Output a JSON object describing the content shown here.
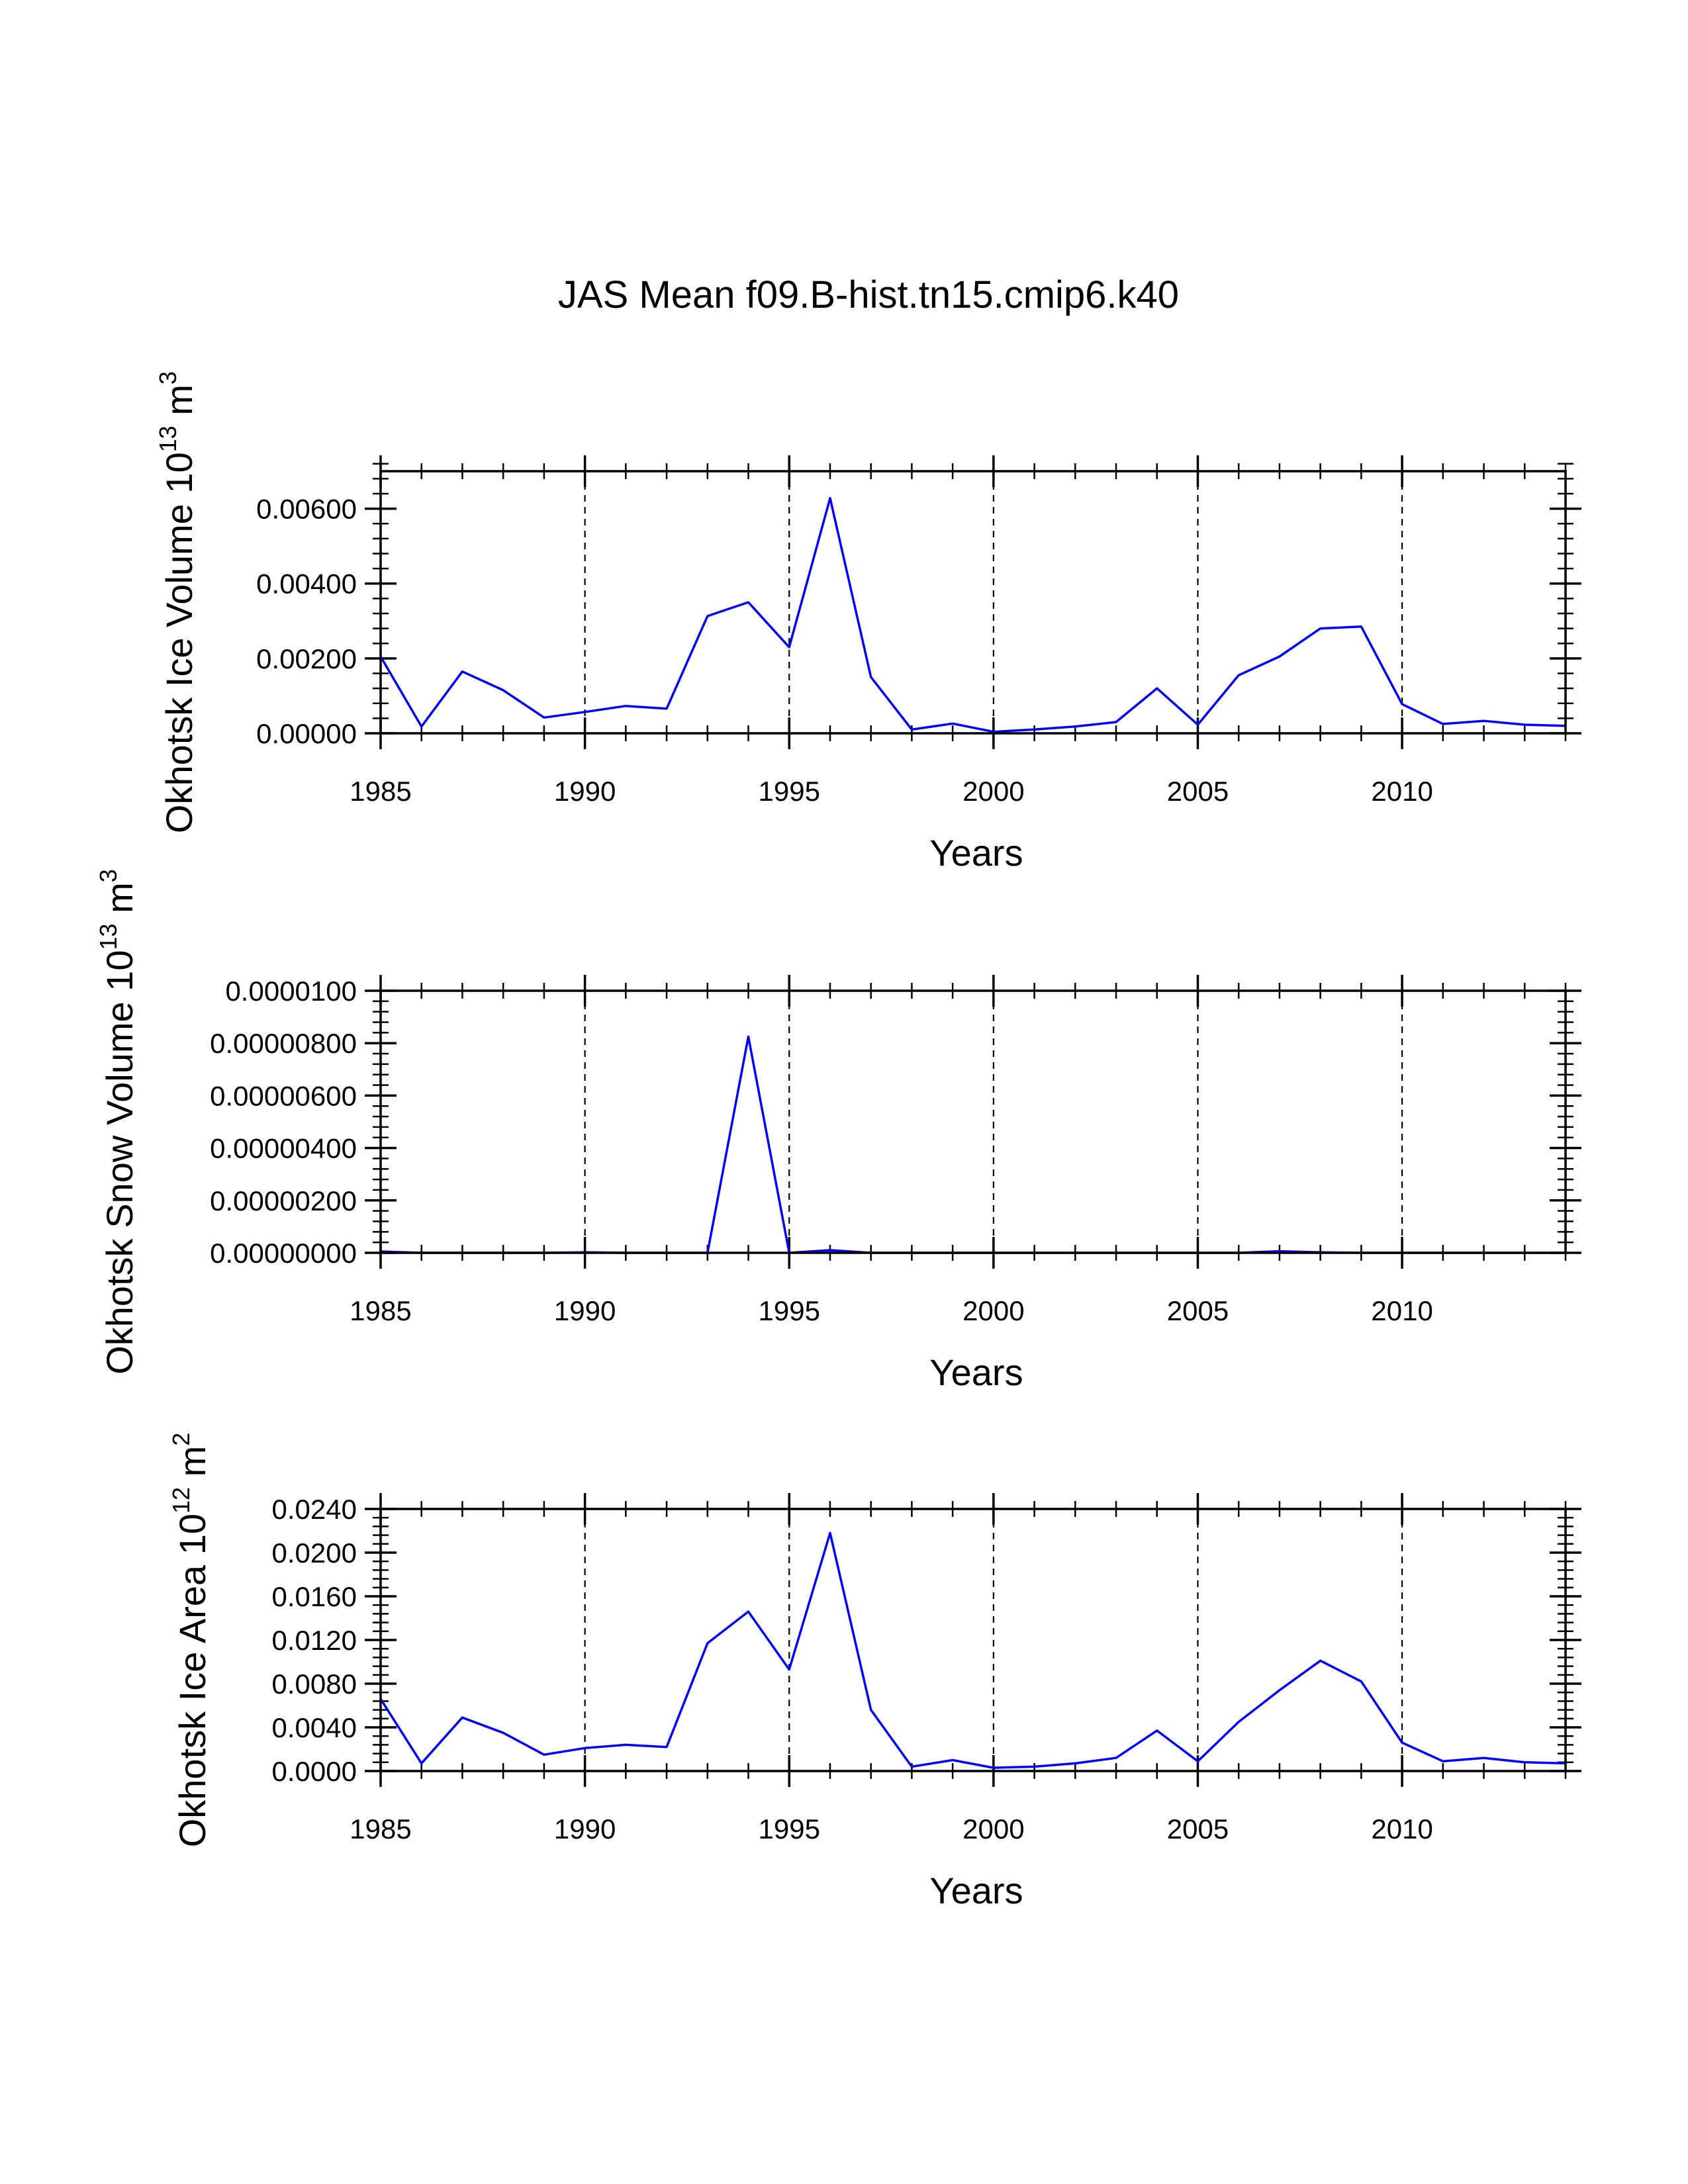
{
  "figure": {
    "title": "JAS Mean f09.B-hist.tn15.cmip6.k40",
    "line_color": "#0000ff"
  },
  "chart_data": [
    {
      "type": "line",
      "name": "ice-volume",
      "ylabel": "Okhotsk Ice Volume 10",
      "ylabel_exp": "13",
      "ylabel_unit": " m",
      "ylabel_unit_exp": "3",
      "xlabel": "Years",
      "xlim": [
        1985,
        2014
      ],
      "ylim": [
        0,
        0.007
      ],
      "yticks": [
        0.0,
        0.002,
        0.004,
        0.006
      ],
      "ytick_labels": [
        "0.00000",
        "0.00200",
        "0.00400",
        "0.00600"
      ],
      "yminor_step": 0.0004,
      "xticks": [
        1985,
        1990,
        1995,
        2000,
        2005,
        2010
      ],
      "xtick_labels": [
        "1985",
        "1990",
        "1995",
        "2000",
        "2005",
        "2010"
      ],
      "grid_x": [
        1990,
        1995,
        2000,
        2005,
        2010
      ],
      "x": [
        1985,
        1986,
        1987,
        1988,
        1989,
        1990,
        1991,
        1992,
        1993,
        1994,
        1995,
        1996,
        1997,
        1998,
        1999,
        2000,
        2001,
        2002,
        2003,
        2004,
        2005,
        2006,
        2007,
        2008,
        2009,
        2010,
        2011,
        2012,
        2013,
        2014
      ],
      "y": [
        0.00205,
        0.00018,
        0.00165,
        0.00115,
        0.00042,
        0.00057,
        0.00073,
        0.00066,
        0.00313,
        0.0035,
        0.0023,
        0.00628,
        0.0015,
        0.0001,
        0.00026,
        4e-05,
        0.0001,
        0.00018,
        0.0003,
        0.0012,
        0.00023,
        0.00155,
        0.00205,
        0.0028,
        0.00285,
        0.00078,
        0.00025,
        0.00033,
        0.00023,
        0.0002
      ]
    },
    {
      "type": "line",
      "name": "snow-volume",
      "ylabel": "Okhotsk Snow Volume 10",
      "ylabel_exp": "13",
      "ylabel_unit": " m",
      "ylabel_unit_exp": "3",
      "xlabel": "Years",
      "xlim": [
        1985,
        2014
      ],
      "ylim": [
        0,
        1e-05
      ],
      "yticks": [
        0.0,
        2e-06,
        4e-06,
        6e-06,
        8e-06,
        1e-05
      ],
      "ytick_labels": [
        "0.00000000",
        "0.00000200",
        "0.00000400",
        "0.00000600",
        "0.00000800",
        "0.0000100"
      ],
      "yminor_step": 4e-07,
      "xticks": [
        1985,
        1990,
        1995,
        2000,
        2005,
        2010
      ],
      "xtick_labels": [
        "1985",
        "1990",
        "1995",
        "2000",
        "2005",
        "2010"
      ],
      "grid_x": [
        1990,
        1995,
        2000,
        2005,
        2010
      ],
      "x": [
        1985,
        1986,
        1987,
        1988,
        1989,
        1990,
        1991,
        1992,
        1993,
        1994,
        1995,
        1996,
        1997,
        1998,
        1999,
        2000,
        2001,
        2002,
        2003,
        2004,
        2005,
        2006,
        2007,
        2008,
        2009,
        2010,
        2011,
        2012,
        2013,
        2014
      ],
      "y": [
        5e-08,
        0.0,
        0.0,
        0.0,
        0.0,
        2e-08,
        0.0,
        0.0,
        0.0,
        8.25e-06,
        0.0,
        1e-07,
        0.0,
        0.0,
        0.0,
        0.0,
        0.0,
        0.0,
        0.0,
        0.0,
        0.0,
        0.0,
        6e-08,
        2e-08,
        0.0,
        0.0,
        0.0,
        0.0,
        0.0,
        0.0
      ]
    },
    {
      "type": "line",
      "name": "ice-area",
      "ylabel": "Okhotsk Ice Area 10",
      "ylabel_exp": "12",
      "ylabel_unit": " m",
      "ylabel_unit_exp": "2",
      "xlabel": "Years",
      "xlim": [
        1985,
        2014
      ],
      "ylim": [
        0,
        0.024
      ],
      "yticks": [
        0.0,
        0.004,
        0.008,
        0.012,
        0.016,
        0.02,
        0.024
      ],
      "ytick_labels": [
        "0.0000",
        "0.0040",
        "0.0080",
        "0.0120",
        "0.0160",
        "0.0200",
        "0.0240"
      ],
      "yminor_step": 0.0008,
      "xticks": [
        1985,
        1990,
        1995,
        2000,
        2005,
        2010
      ],
      "xtick_labels": [
        "1985",
        "1990",
        "1995",
        "2000",
        "2005",
        "2010"
      ],
      "grid_x": [
        1990,
        1995,
        2000,
        2005,
        2010
      ],
      "x": [
        1985,
        1986,
        1987,
        1988,
        1989,
        1990,
        1991,
        1992,
        1993,
        1994,
        1995,
        1996,
        1997,
        1998,
        1999,
        2000,
        2001,
        2002,
        2003,
        2004,
        2005,
        2006,
        2007,
        2008,
        2009,
        2010,
        2011,
        2012,
        2013,
        2014
      ],
      "y": [
        0.0066,
        0.0007,
        0.0049,
        0.0035,
        0.0015,
        0.0021,
        0.0024,
        0.0022,
        0.0117,
        0.0146,
        0.0093,
        0.0218,
        0.0056,
        0.0004,
        0.001,
        0.0003,
        0.0004,
        0.0007,
        0.0012,
        0.0037,
        0.0009,
        0.0045,
        0.0074,
        0.0101,
        0.0082,
        0.0026,
        0.0009,
        0.0012,
        0.0008,
        0.0007
      ]
    }
  ]
}
